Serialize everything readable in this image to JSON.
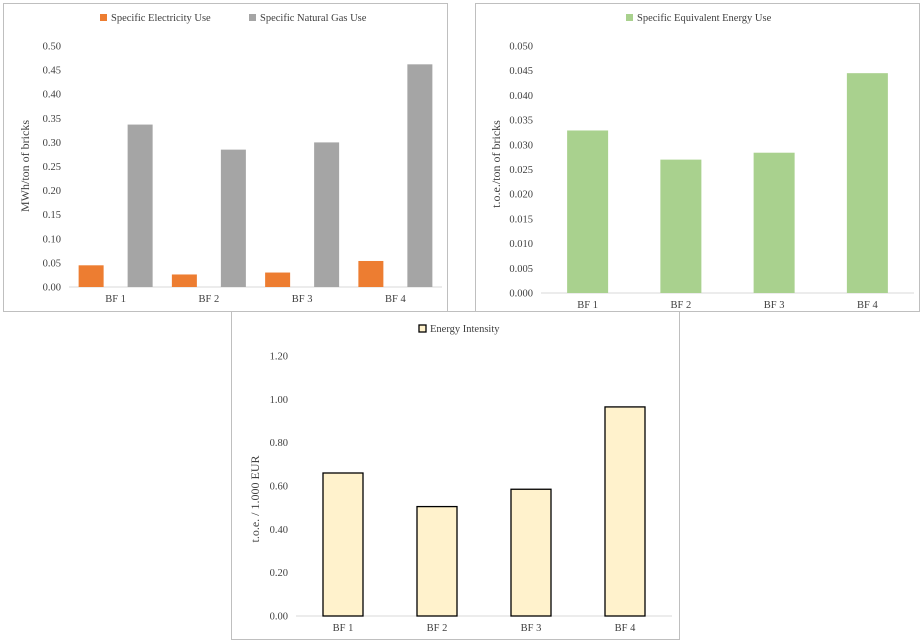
{
  "chart_data": [
    {
      "type": "bar",
      "categories": [
        "BF 1",
        "BF 2",
        "BF 3",
        "BF 4"
      ],
      "series": [
        {
          "name": "Specific Electricity Use",
          "values": [
            0.045,
            0.026,
            0.03,
            0.054
          ],
          "color": "#ed7d31"
        },
        {
          "name": "Specific Natural Gas Use",
          "values": [
            0.337,
            0.285,
            0.3,
            0.462
          ],
          "color": "#a5a5a5"
        }
      ],
      "ylabel": "MWh/ton of bricks",
      "ylim": [
        0,
        0.5
      ],
      "yticks": [
        "0.00",
        "0.05",
        "0.10",
        "0.15",
        "0.20",
        "0.25",
        "0.30",
        "0.35",
        "0.40",
        "0.45",
        "0.50"
      ],
      "legend": "top",
      "grid": false
    },
    {
      "type": "bar",
      "categories": [
        "BF 1",
        "BF 2",
        "BF 3",
        "BF 4"
      ],
      "series": [
        {
          "name": "Specific Equivalent Energy Use",
          "values": [
            0.0329,
            0.027,
            0.0284,
            0.0445
          ],
          "color": "#a9d18e"
        }
      ],
      "ylabel": "t.o.e./ton of bricks",
      "ylim": [
        0,
        0.05
      ],
      "yticks": [
        "0.000",
        "0.005",
        "0.010",
        "0.015",
        "0.020",
        "0.025",
        "0.030",
        "0.035",
        "0.040",
        "0.045",
        "0.050"
      ],
      "legend": "top",
      "grid": false
    },
    {
      "type": "bar",
      "categories": [
        "BF 1",
        "BF 2",
        "BF 3",
        "BF 4"
      ],
      "series": [
        {
          "name": "Energy Intensity",
          "values": [
            0.66,
            0.505,
            0.585,
            0.965
          ],
          "color": "#fff2cc",
          "stroke": "#000000"
        }
      ],
      "ylabel": "t.o.e. / 1.000 EUR",
      "ylim": [
        0,
        1.2
      ],
      "yticks": [
        "0.00",
        "0.20",
        "0.40",
        "0.60",
        "0.80",
        "1.00",
        "1.20"
      ],
      "legend": "top",
      "grid": false
    }
  ]
}
